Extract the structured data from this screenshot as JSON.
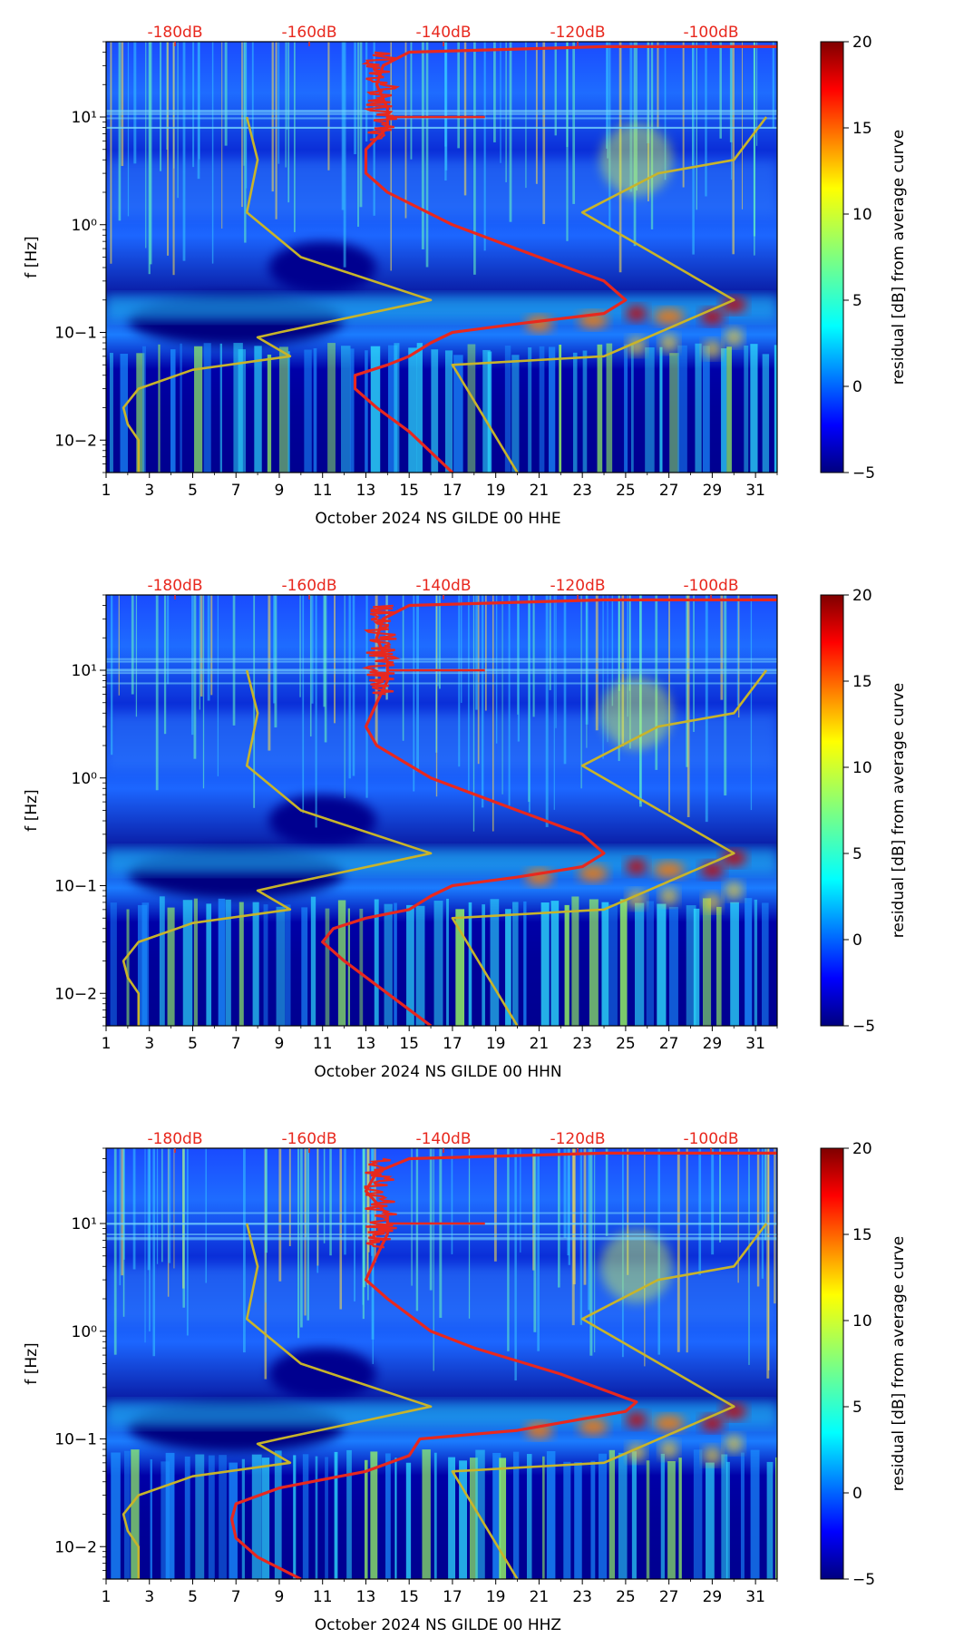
{
  "chart_data": [
    {
      "type": "heatmap",
      "xlabel": "October 2024 NS GILDE 00 HHE",
      "ylabel": "f [Hz]",
      "colorbar_label": "residual [dB] from average curve",
      "colorbar_ticks": [
        "20",
        "15",
        "10",
        "5",
        "0",
        "−5"
      ],
      "colorbar_range": [
        -5,
        20
      ],
      "colormap": "jet",
      "x_ticks": [
        "1",
        "3",
        "5",
        "7",
        "9",
        "11",
        "13",
        "15",
        "17",
        "19",
        "21",
        "23",
        "25",
        "27",
        "29",
        "31"
      ],
      "xlim": [
        1,
        32
      ],
      "y_ticks": [
        "10−2",
        "10−1",
        "10⁰",
        "10¹"
      ],
      "y_scale": "log",
      "ylim": [
        0.005,
        50
      ],
      "top_ticks": [
        "-180dB",
        "-160dB",
        "-140dB",
        "-120dB",
        "-100dB"
      ],
      "series": [
        {
          "color": "#e8281e",
          "points": [
            [
              17,
              0.005
            ],
            [
              15,
              0.012
            ],
            [
              13.5,
              0.02
            ],
            [
              12.5,
              0.03
            ],
            [
              12.5,
              0.04
            ],
            [
              14,
              0.05
            ],
            [
              15,
              0.06
            ],
            [
              16,
              0.08
            ],
            [
              17,
              0.1
            ],
            [
              20,
              0.12
            ],
            [
              24,
              0.15
            ],
            [
              25,
              0.2
            ],
            [
              24,
              0.3
            ],
            [
              21,
              0.5
            ],
            [
              17,
              1.0
            ],
            [
              14,
              2.0
            ],
            [
              13,
              3.0
            ],
            [
              13,
              5.0
            ],
            [
              14,
              8.0
            ],
            [
              14,
              12.0
            ],
            [
              13.5,
              20.0
            ],
            [
              13.8,
              30.0
            ],
            [
              15,
              40.0
            ],
            [
              24,
              45.0
            ],
            [
              32,
              45.0
            ]
          ]
        },
        {
          "color": "#c8b42a",
          "points": [
            [
              2.5,
              0.005
            ],
            [
              2.5,
              0.01
            ],
            [
              2,
              0.014
            ],
            [
              1.8,
              0.02
            ],
            [
              2.5,
              0.03
            ],
            [
              5,
              0.045
            ],
            [
              9.5,
              0.06
            ],
            [
              8,
              0.09
            ],
            [
              9,
              0.1
            ],
            [
              16,
              0.2
            ],
            [
              10,
              0.5
            ],
            [
              7.5,
              1.3
            ],
            [
              8,
              4.0
            ],
            [
              7.5,
              10.0
            ]
          ]
        },
        {
          "color": "#c8b42a",
          "points": [
            [
              20,
              0.005
            ],
            [
              17,
              0.05
            ],
            [
              24,
              0.06
            ],
            [
              30,
              0.2
            ],
            [
              23,
              1.3
            ],
            [
              26.5,
              3.0
            ],
            [
              30,
              4.0
            ],
            [
              31.5,
              10.0
            ]
          ]
        }
      ]
    },
    {
      "type": "heatmap",
      "xlabel": "October 2024 NS GILDE 00 HHN",
      "ylabel": "f [Hz]",
      "colorbar_label": "residual [dB] from average curve",
      "colorbar_ticks": [
        "20",
        "15",
        "10",
        "5",
        "0",
        "−5"
      ],
      "colorbar_range": [
        -5,
        20
      ],
      "colormap": "jet",
      "x_ticks": [
        "1",
        "3",
        "5",
        "7",
        "9",
        "11",
        "13",
        "15",
        "17",
        "19",
        "21",
        "23",
        "25",
        "27",
        "29",
        "31"
      ],
      "xlim": [
        1,
        32
      ],
      "y_ticks": [
        "10−2",
        "10−1",
        "10⁰",
        "10¹"
      ],
      "y_scale": "log",
      "ylim": [
        0.005,
        50
      ],
      "top_ticks": [
        "-180dB",
        "-160dB",
        "-140dB",
        "-120dB",
        "-100dB"
      ],
      "series": [
        {
          "color": "#e8281e",
          "points": [
            [
              16,
              0.005
            ],
            [
              14,
              0.01
            ],
            [
              12,
              0.02
            ],
            [
              11,
              0.03
            ],
            [
              11.5,
              0.04
            ],
            [
              13,
              0.05
            ],
            [
              15,
              0.06
            ],
            [
              16,
              0.08
            ],
            [
              17,
              0.1
            ],
            [
              20,
              0.12
            ],
            [
              23,
              0.15
            ],
            [
              24,
              0.2
            ],
            [
              23,
              0.3
            ],
            [
              20,
              0.5
            ],
            [
              16,
              1.0
            ],
            [
              13.5,
              2.0
            ],
            [
              13,
              3.0
            ],
            [
              13.5,
              5.0
            ],
            [
              14,
              8.0
            ],
            [
              14,
              12.0
            ],
            [
              13.5,
              20.0
            ],
            [
              13.8,
              30.0
            ],
            [
              15,
              40.0
            ],
            [
              24,
              45.0
            ],
            [
              32,
              45.0
            ]
          ]
        },
        {
          "color": "#c8b42a",
          "points": [
            [
              2.5,
              0.005
            ],
            [
              2.5,
              0.01
            ],
            [
              2,
              0.014
            ],
            [
              1.8,
              0.02
            ],
            [
              2.5,
              0.03
            ],
            [
              5,
              0.045
            ],
            [
              9.5,
              0.06
            ],
            [
              8,
              0.09
            ],
            [
              9,
              0.1
            ],
            [
              16,
              0.2
            ],
            [
              10,
              0.5
            ],
            [
              7.5,
              1.3
            ],
            [
              8,
              4.0
            ],
            [
              7.5,
              10.0
            ]
          ]
        },
        {
          "color": "#c8b42a",
          "points": [
            [
              20,
              0.005
            ],
            [
              17,
              0.05
            ],
            [
              24,
              0.06
            ],
            [
              30,
              0.2
            ],
            [
              23,
              1.3
            ],
            [
              26.5,
              3.0
            ],
            [
              30,
              4.0
            ],
            [
              31.5,
              10.0
            ]
          ]
        }
      ]
    },
    {
      "type": "heatmap",
      "xlabel": "October 2024 NS GILDE 00 HHZ",
      "ylabel": "f [Hz]",
      "colorbar_label": "residual [dB] from average curve",
      "colorbar_ticks": [
        "20",
        "15",
        "10",
        "5",
        "0",
        "−5"
      ],
      "colorbar_range": [
        -5,
        20
      ],
      "colormap": "jet",
      "x_ticks": [
        "1",
        "3",
        "5",
        "7",
        "9",
        "11",
        "13",
        "15",
        "17",
        "19",
        "21",
        "23",
        "25",
        "27",
        "29",
        "31"
      ],
      "xlim": [
        1,
        32
      ],
      "y_ticks": [
        "10−2",
        "10−1",
        "10⁰",
        "10¹"
      ],
      "y_scale": "log",
      "ylim": [
        0.005,
        50
      ],
      "top_ticks": [
        "-180dB",
        "-160dB",
        "-140dB",
        "-120dB",
        "-100dB"
      ],
      "series": [
        {
          "color": "#e8281e",
          "points": [
            [
              10,
              0.005
            ],
            [
              8,
              0.008
            ],
            [
              7,
              0.012
            ],
            [
              6.8,
              0.018
            ],
            [
              7,
              0.025
            ],
            [
              9,
              0.035
            ],
            [
              13,
              0.05
            ],
            [
              15,
              0.07
            ],
            [
              15.5,
              0.1
            ],
            [
              20,
              0.12
            ],
            [
              25,
              0.18
            ],
            [
              25.5,
              0.22
            ],
            [
              22,
              0.4
            ],
            [
              18,
              0.7
            ],
            [
              16,
              1.0
            ],
            [
              14,
              2.0
            ],
            [
              13,
              3.0
            ],
            [
              13.5,
              5.0
            ],
            [
              14,
              8.0
            ],
            [
              14,
              12.0
            ],
            [
              13,
              20.0
            ],
            [
              13.5,
              30.0
            ],
            [
              15,
              40.0
            ],
            [
              24,
              45.0
            ],
            [
              32,
              45.0
            ]
          ]
        },
        {
          "color": "#c8b42a",
          "points": [
            [
              2.5,
              0.005
            ],
            [
              2.5,
              0.01
            ],
            [
              2,
              0.014
            ],
            [
              1.8,
              0.02
            ],
            [
              2.5,
              0.03
            ],
            [
              5,
              0.045
            ],
            [
              9.5,
              0.06
            ],
            [
              8,
              0.09
            ],
            [
              9,
              0.1
            ],
            [
              16,
              0.2
            ],
            [
              10,
              0.5
            ],
            [
              7.5,
              1.3
            ],
            [
              8,
              4.0
            ],
            [
              7.5,
              10.0
            ]
          ]
        },
        {
          "color": "#c8b42a",
          "points": [
            [
              20,
              0.005
            ],
            [
              17,
              0.05
            ],
            [
              24,
              0.06
            ],
            [
              30,
              0.2
            ],
            [
              23,
              1.3
            ],
            [
              26.5,
              3.0
            ],
            [
              30,
              4.0
            ],
            [
              31.5,
              10.0
            ]
          ]
        }
      ]
    }
  ]
}
